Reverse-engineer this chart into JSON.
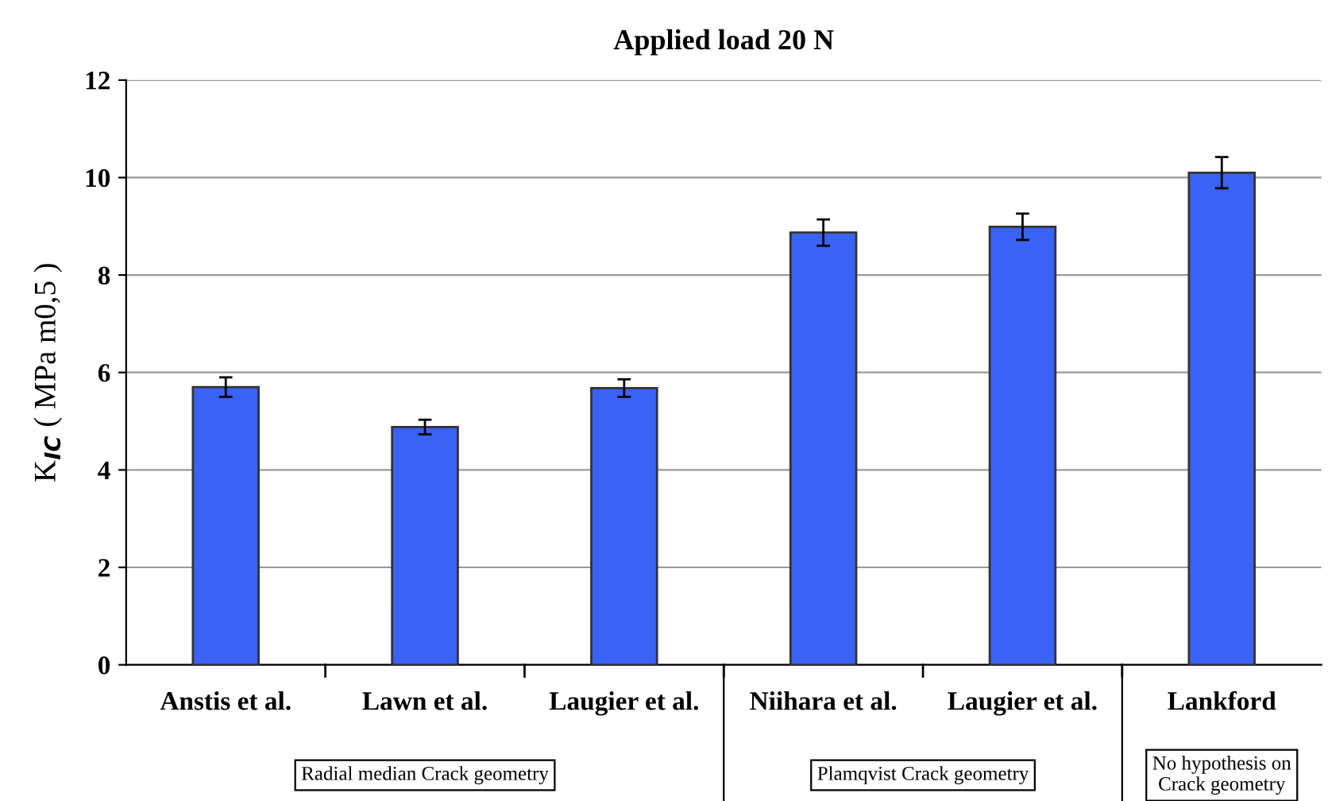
{
  "chart_data": {
    "type": "bar",
    "title": "Applied load 20 N",
    "ylabel": "K$_{IC}$ ( MPa m0,5 )",
    "categories": [
      "Anstis et al.",
      "Lawn et al.",
      "Laugier et al.",
      "Niihara et al.",
      "Laugier et al.",
      "Lankford"
    ],
    "values": [
      5.7,
      4.88,
      5.68,
      8.87,
      8.99,
      10.1
    ],
    "errors": [
      0.2,
      0.15,
      0.18,
      0.27,
      0.27,
      0.32
    ],
    "color": "#3a62f5",
    "ylim": [
      0,
      12
    ],
    "yticks": [
      0,
      2,
      4,
      6,
      8,
      10,
      12
    ],
    "grid": "y",
    "annotations": [
      "Radial median Crack geometry",
      "Plamqvist Crack geometry",
      "No hypothesis on\nCrack geometry"
    ]
  }
}
